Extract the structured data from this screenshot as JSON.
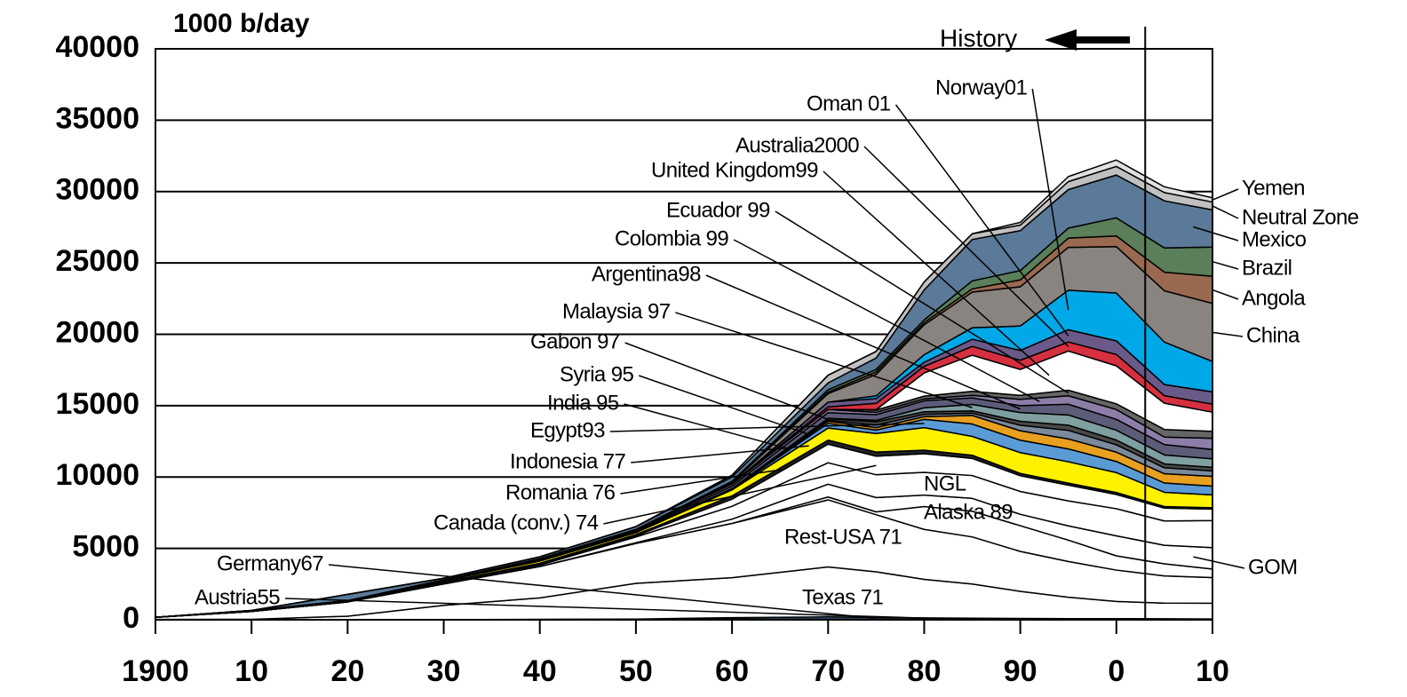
{
  "chart_data": {
    "type": "stacked_area",
    "y_label": "1000 b/day",
    "x": [
      1900,
      1910,
      1920,
      1930,
      1940,
      1950,
      1960,
      1970,
      1975,
      1980,
      1985,
      1990,
      1995,
      2000,
      2005,
      2010
    ],
    "xlim": [
      1900,
      2010
    ],
    "xticks": [
      1900,
      {
        "value": 1910,
        "label": "10"
      },
      {
        "value": 1920,
        "label": "20"
      },
      {
        "value": 1930,
        "label": "30"
      },
      {
        "value": 1940,
        "label": "40"
      },
      {
        "value": 1950,
        "label": "50"
      },
      {
        "value": 1960,
        "label": "60"
      },
      {
        "value": 1970,
        "label": "70"
      },
      {
        "value": 1980,
        "label": "80"
      },
      {
        "value": 1990,
        "label": "90"
      },
      {
        "value": 2000,
        "label": "0"
      },
      {
        "value": 2010,
        "label": "10"
      }
    ],
    "ylim": [
      0,
      40000
    ],
    "yticks": [
      0,
      5000,
      10000,
      15000,
      20000,
      25000,
      30000,
      35000,
      40000
    ],
    "grid": true,
    "annotations": [
      {
        "text": "History",
        "x": 2003
      }
    ],
    "series": [
      {
        "name": "Austria55",
        "color": "#1f3f6f",
        "values": [
          0,
          0,
          0,
          0,
          10,
          20,
          50,
          50,
          40,
          30,
          25,
          20,
          20,
          20,
          20,
          15
        ]
      },
      {
        "name": "Germany67",
        "color": "#4a7fb0",
        "values": [
          0,
          0,
          0,
          10,
          20,
          30,
          100,
          150,
          120,
          100,
          80,
          70,
          60,
          60,
          50,
          40
        ]
      },
      {
        "name": "Texas 71",
        "color": "#ffffff",
        "values": [
          20,
          30,
          250,
          1000,
          1500,
          2500,
          2800,
          3500,
          3200,
          2700,
          2400,
          1900,
          1500,
          1200,
          1100,
          1100
        ]
      },
      {
        "name": "Rest-USA 71",
        "color": "#ffffff",
        "values": [
          150,
          550,
          1000,
          1500,
          2200,
          2800,
          3800,
          4700,
          4000,
          3500,
          3300,
          2800,
          2500,
          2200,
          1900,
          1800
        ]
      },
      {
        "name": "Alaska 89",
        "color": "#ffffff",
        "values": [
          0,
          0,
          0,
          0,
          0,
          0,
          0,
          200,
          200,
          1600,
          1800,
          1800,
          1500,
          1000,
          850,
          600
        ]
      },
      {
        "name": "GOM",
        "color": "#ffffff",
        "values": [
          0,
          0,
          0,
          0,
          0,
          50,
          300,
          900,
          1000,
          800,
          900,
          800,
          1000,
          1400,
          1300,
          1500
        ]
      },
      {
        "name": "NGL",
        "color": "#ffffff",
        "values": [
          0,
          0,
          0,
          0,
          100,
          400,
          900,
          1500,
          1600,
          1600,
          1600,
          1600,
          1750,
          1900,
          1700,
          1900
        ]
      },
      {
        "name": "Canada (conv.) 74",
        "color": "#ffffff",
        "values": [
          0,
          0,
          0,
          0,
          10,
          80,
          500,
          1300,
          1300,
          1300,
          1200,
          1100,
          1100,
          1000,
          900,
          800
        ]
      },
      {
        "name": "Romania 76",
        "color": "#222222",
        "values": [
          5,
          25,
          20,
          120,
          120,
          90,
          230,
          280,
          290,
          250,
          220,
          160,
          140,
          130,
          110,
          90
        ]
      },
      {
        "name": "Indonesia 77",
        "color": "#fff200",
        "values": [
          0,
          30,
          50,
          100,
          150,
          130,
          420,
          850,
          1300,
          1580,
          1320,
          1460,
          1500,
          1400,
          1000,
          900
        ]
      },
      {
        "name": "Egypt93",
        "color": "#5b9bd5",
        "values": [
          0,
          0,
          0,
          5,
          20,
          50,
          60,
          330,
          240,
          580,
          870,
          870,
          900,
          780,
          650,
          620
        ]
      },
      {
        "name": "India 95",
        "color": "#e8a020",
        "values": [
          0,
          0,
          0,
          5,
          5,
          5,
          10,
          140,
          170,
          190,
          600,
          660,
          700,
          650,
          650,
          680
        ]
      },
      {
        "name": "Syria 95",
        "color": "#7a8a9a",
        "values": [
          0,
          0,
          0,
          0,
          0,
          0,
          0,
          80,
          180,
          160,
          160,
          390,
          600,
          520,
          420,
          380
        ]
      },
      {
        "name": "Gabon 97",
        "color": "#4a4a4a",
        "values": [
          0,
          0,
          0,
          0,
          0,
          0,
          15,
          110,
          230,
          180,
          160,
          270,
          360,
          330,
          270,
          250
        ]
      },
      {
        "name": "Malaysia 97",
        "color": "#7f9fa0",
        "values": [
          0,
          0,
          0,
          0,
          0,
          0,
          0,
          20,
          100,
          280,
          450,
          620,
          720,
          690,
          630,
          600
        ]
      },
      {
        "name": "Argentina98",
        "color": "#5d5d7a",
        "values": [
          0,
          10,
          20,
          30,
          70,
          70,
          180,
          400,
          400,
          490,
          460,
          480,
          750,
          760,
          720,
          650
        ]
      },
      {
        "name": "Colombia 99",
        "color": "#8c7ea8",
        "values": [
          0,
          0,
          10,
          30,
          70,
          100,
          150,
          220,
          160,
          130,
          180,
          440,
          590,
          690,
          530,
          790
        ]
      },
      {
        "name": "Ecuador 99",
        "color": "#666666",
        "values": [
          0,
          0,
          0,
          0,
          5,
          5,
          5,
          5,
          160,
          200,
          280,
          280,
          390,
          400,
          530,
          490
        ]
      },
      {
        "name": "United Kingdom99",
        "color": "#ffffff",
        "values": [
          0,
          0,
          0,
          0,
          0,
          0,
          0,
          0,
          30,
          1620,
          2530,
          1820,
          2750,
          2660,
          1840,
          1340
        ]
      },
      {
        "name": "Australia2000",
        "color": "#d63040",
        "values": [
          0,
          0,
          0,
          0,
          0,
          0,
          0,
          180,
          440,
          470,
          620,
          640,
          630,
          800,
          530,
          560
        ]
      },
      {
        "name": "Oman 01",
        "color": "#6a5a8a",
        "values": [
          0,
          0,
          0,
          0,
          0,
          0,
          0,
          330,
          340,
          280,
          500,
          690,
          860,
          950,
          780,
          860
        ]
      },
      {
        "name": "Norway01",
        "color": "#00a8e8",
        "values": [
          0,
          0,
          0,
          0,
          0,
          0,
          0,
          0,
          190,
          530,
          800,
          1710,
          2770,
          3350,
          2970,
          2130
        ]
      },
      {
        "name": "China",
        "color": "#8a8480",
        "values": [
          0,
          0,
          0,
          0,
          0,
          0,
          100,
          600,
          1500,
          2100,
          2500,
          2750,
          3000,
          3250,
          3600,
          4070
        ]
      },
      {
        "name": "Angola",
        "color": "#9a6a50",
        "values": [
          0,
          0,
          0,
          0,
          0,
          0,
          0,
          100,
          170,
          150,
          230,
          480,
          650,
          750,
          1300,
          1900
        ]
      },
      {
        "name": "Brazil",
        "color": "#5a7f5a",
        "values": [
          0,
          0,
          0,
          0,
          0,
          0,
          80,
          170,
          180,
          190,
          560,
          650,
          700,
          1270,
          1700,
          2050
        ]
      },
      {
        "name": "Mexico",
        "color": "#5b7a99",
        "values": [
          0,
          10,
          430,
          110,
          130,
          200,
          300,
          480,
          800,
          2100,
          2900,
          2800,
          2700,
          3000,
          3300,
          2600
        ]
      },
      {
        "name": "Neutral Zone",
        "color": "#c0c0c0",
        "values": [
          0,
          0,
          0,
          0,
          0,
          0,
          130,
          540,
          460,
          560,
          400,
          390,
          560,
          600,
          580,
          550
        ]
      },
      {
        "name": "Yemen",
        "color": "#e0e0e0",
        "values": [
          0,
          0,
          0,
          0,
          0,
          0,
          0,
          0,
          0,
          0,
          0,
          190,
          350,
          450,
          400,
          300
        ]
      }
    ]
  }
}
